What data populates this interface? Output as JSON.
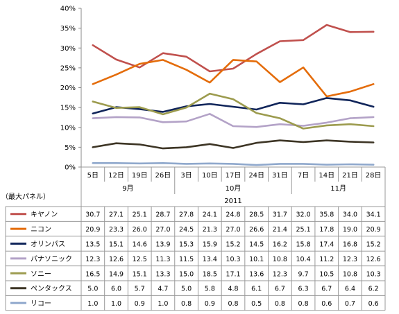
{
  "chart_data": {
    "type": "line",
    "yticks": [
      "0%",
      "5%",
      "10%",
      "15%",
      "20%",
      "25%",
      "30%",
      "35%",
      "40%"
    ],
    "ylim": [
      0,
      40
    ],
    "categories": [
      "5日",
      "12日",
      "19日",
      "26日",
      "3日",
      "10日",
      "17日",
      "24日",
      "31日",
      "7日",
      "14日",
      "21日",
      "28日"
    ],
    "month_groups": [
      {
        "label": "9月",
        "count": 4
      },
      {
        "label": "10月",
        "count": 5
      },
      {
        "label": "11月",
        "count": 4
      }
    ],
    "year_label": "2011",
    "table_header_label": "（最大パネル）",
    "grid": false,
    "series": [
      {
        "name": "キヤノン",
        "color": "#C0504D",
        "values": [
          30.7,
          27.1,
          25.1,
          28.7,
          27.8,
          24.1,
          24.8,
          28.5,
          31.7,
          32.0,
          35.8,
          34.0,
          34.1
        ],
        "labels": [
          "30.7",
          "27.1",
          "25.1",
          "28.7",
          "27.8",
          "24.1",
          "24.8",
          "28.5",
          "31.7",
          "32.0",
          "35.8",
          "34.0",
          "34.1"
        ]
      },
      {
        "name": "ニコン",
        "color": "#E46C0A",
        "values": [
          20.9,
          23.3,
          26.0,
          27.0,
          24.5,
          21.3,
          27.0,
          26.6,
          21.4,
          25.1,
          17.8,
          19.0,
          20.9
        ],
        "labels": [
          "20.9",
          "23.3",
          "26.0",
          "27.0",
          "24.5",
          "21.3",
          "27.0",
          "26.6",
          "21.4",
          "25.1",
          "17.8",
          "19.0",
          "20.9"
        ]
      },
      {
        "name": "オリンパス",
        "color": "#10255A",
        "values": [
          13.5,
          15.1,
          14.6,
          13.9,
          15.3,
          15.9,
          15.2,
          14.5,
          16.2,
          15.8,
          17.4,
          16.8,
          15.2
        ],
        "labels": [
          "13.5",
          "15.1",
          "14.6",
          "13.9",
          "15.3",
          "15.9",
          "15.2",
          "14.5",
          "16.2",
          "15.8",
          "17.4",
          "16.8",
          "15.2"
        ]
      },
      {
        "name": "パナソニック",
        "color": "#B3A2C7",
        "values": [
          12.3,
          12.6,
          12.5,
          11.3,
          11.5,
          13.4,
          10.3,
          10.1,
          10.8,
          10.4,
          11.2,
          12.3,
          12.6
        ],
        "labels": [
          "12.3",
          "12.6",
          "12.5",
          "11.3",
          "11.5",
          "13.4",
          "10.3",
          "10.1",
          "10.8",
          "10.4",
          "11.2",
          "12.3",
          "12.6"
        ]
      },
      {
        "name": "ソニー",
        "color": "#9C9B4E",
        "values": [
          16.5,
          14.9,
          15.1,
          13.3,
          15.0,
          18.5,
          17.1,
          13.6,
          12.3,
          9.7,
          10.5,
          10.8,
          10.3
        ],
        "labels": [
          "16.5",
          "14.9",
          "15.1",
          "13.3",
          "15.0",
          "18.5",
          "17.1",
          "13.6",
          "12.3",
          "9.7",
          "10.5",
          "10.8",
          "10.3"
        ]
      },
      {
        "name": "ペンタックス",
        "color": "#3D3525",
        "values": [
          5.0,
          6.0,
          5.7,
          4.7,
          5.0,
          5.8,
          4.8,
          6.1,
          6.7,
          6.3,
          6.7,
          6.4,
          6.2
        ],
        "labels": [
          "5.0",
          "6.0",
          "5.7",
          "4.7",
          "5.0",
          "5.8",
          "4.8",
          "6.1",
          "6.7",
          "6.3",
          "6.7",
          "6.4",
          "6.2"
        ]
      },
      {
        "name": "リコー",
        "color": "#8FA8CC",
        "values": [
          1.0,
          1.0,
          0.9,
          1.0,
          0.8,
          0.9,
          0.8,
          0.5,
          0.8,
          0.8,
          0.6,
          0.7,
          0.6
        ],
        "labels": [
          "1.0",
          "1.0",
          "0.9",
          "1.0",
          "0.8",
          "0.9",
          "0.8",
          "0.5",
          "0.8",
          "0.8",
          "0.6",
          "0.7",
          "0.6"
        ]
      }
    ]
  }
}
